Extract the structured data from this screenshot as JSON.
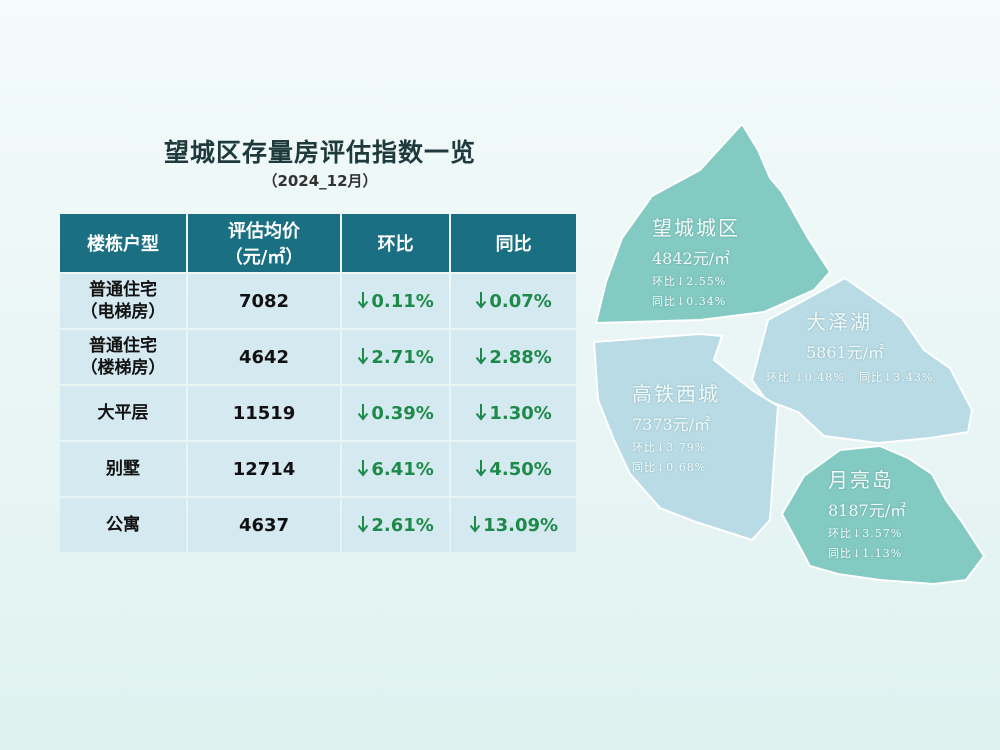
{
  "title": "望城区存量房评估指数一览",
  "subtitle": "（2024_12月）",
  "table": {
    "headers": {
      "type": "楼栋户型",
      "price_line1": "评估均价",
      "price_line2": "（元/㎡）",
      "mom": "环比",
      "yoy": "同比"
    },
    "rows": [
      {
        "type_line1": "普通住宅",
        "type_line2": "（电梯房）",
        "price": "7082",
        "mom": "0.11%",
        "yoy": "0.07%"
      },
      {
        "type_line1": "普通住宅",
        "type_line2": "（楼梯房）",
        "price": "4642",
        "mom": "2.71%",
        "yoy": "2.88%"
      },
      {
        "type_line1": "大平层",
        "type_line2": "",
        "price": "11519",
        "mom": "0.39%",
        "yoy": "1.30%"
      },
      {
        "type_line1": "别墅",
        "type_line2": "",
        "price": "12714",
        "mom": "6.41%",
        "yoy": "4.50%"
      },
      {
        "type_line1": "公寓",
        "type_line2": "",
        "price": "4637",
        "mom": "2.61%",
        "yoy": "13.09%"
      }
    ],
    "change_direction": "down",
    "change_color": "#1e8a4a",
    "header_color": "#1a6f82",
    "cell_color": "#d5e9f1"
  },
  "map": {
    "regions": [
      {
        "name": "望城城区",
        "price": "4842元/㎡",
        "mom": "环比↓2.55%",
        "yoy": "同比↓0.34%",
        "color": "#7ec8c0"
      },
      {
        "name": "大泽湖",
        "price": "5861元/㎡",
        "mom": "环比 ↓0.48%",
        "yoy": "同比↓3.43%",
        "color": "#b9dbe6"
      },
      {
        "name": "高铁西城",
        "price": "7373元/㎡",
        "mom": "环比↓3.79%",
        "yoy": "同比↓0.68%",
        "color": "#b9dbe6"
      },
      {
        "name": "月亮岛",
        "price": "8187元/㎡",
        "mom": "环比↓3.57%",
        "yoy": "同比↓1.13%",
        "color": "#7ec8c0"
      }
    ]
  }
}
